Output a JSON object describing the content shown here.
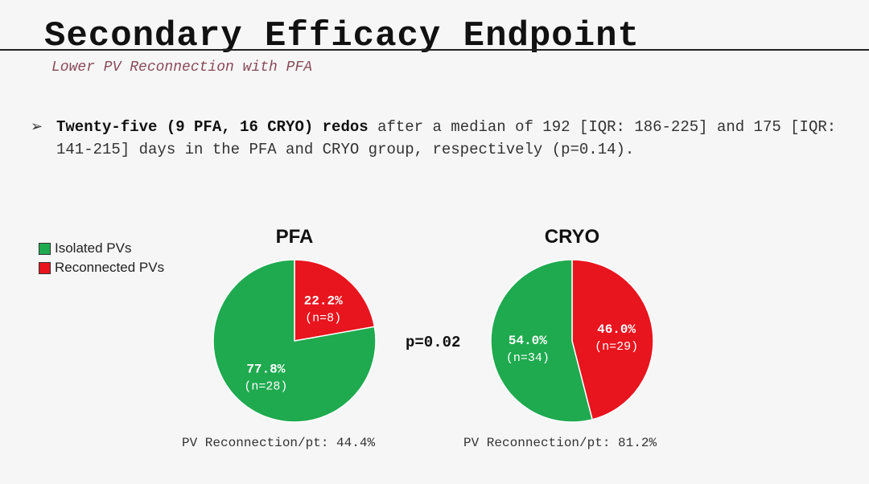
{
  "header": {
    "title": "Secondary Efficacy Endpoint",
    "subtitle": "Lower PV Reconnection with PFA"
  },
  "bullet": {
    "arrow": "➢",
    "bold": "Twenty-five (9 PFA, 16 CRYO) redos",
    "rest": " after a median of 192 [IQR: 186-225] and 175 [IQR: 141-215] days in the PFA and CRYO group,  respectively (p=0.14)."
  },
  "legend": {
    "isolated": "Isolated PVs",
    "reconnected": "Reconnected PVs"
  },
  "colors": {
    "isolated": "#1faa4f",
    "reconnected": "#e8141e"
  },
  "p_value": "p=0.02",
  "chart_data": [
    {
      "type": "pie",
      "title": "PFA",
      "slices": [
        {
          "name": "Reconnected PVs",
          "value": 22.2,
          "label": "22.2%",
          "n": "(n=8)"
        },
        {
          "name": "Isolated PVs",
          "value": 77.8,
          "label": "77.8%",
          "n": "(n=28)"
        }
      ],
      "footnote": "PV Reconnection/pt: 44.4%"
    },
    {
      "type": "pie",
      "title": "CRYO",
      "slices": [
        {
          "name": "Reconnected PVs",
          "value": 46.0,
          "label": "46.0%",
          "n": "(n=29)"
        },
        {
          "name": "Isolated PVs",
          "value": 54.0,
          "label": "54.0%",
          "n": "(n=34)"
        }
      ],
      "footnote": "PV Reconnection/pt: 81.2%"
    }
  ]
}
